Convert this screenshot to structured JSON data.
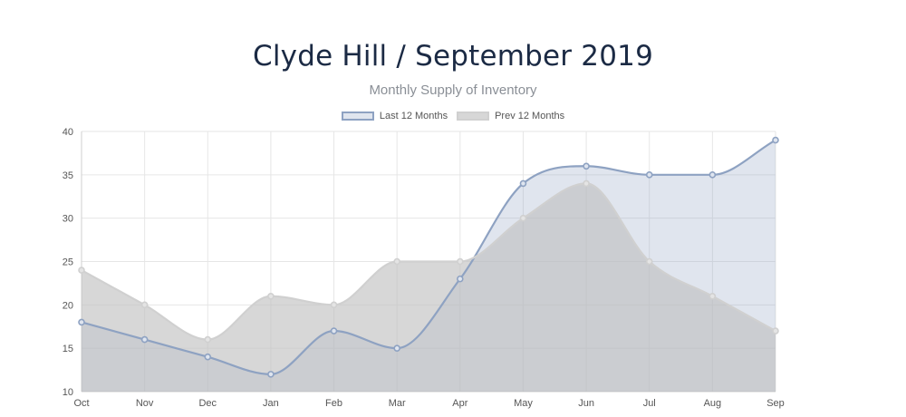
{
  "header": {
    "title": "Clyde Hill / September 2019",
    "subtitle": "Monthly Supply of Inventory"
  },
  "colors": {
    "last_line": "#8ea2c2",
    "last_fill": "rgba(142,162,194,0.28)",
    "prev_line": "#d0d0d0",
    "prev_fill": "rgba(190,190,190,0.62)",
    "grid": "#e6e6e6"
  },
  "chart_data": {
    "type": "area",
    "title": "Clyde Hill / September 2019",
    "subtitle": "Monthly Supply of Inventory",
    "categories": [
      "Oct",
      "Nov",
      "Dec",
      "Jan",
      "Feb",
      "Mar",
      "Apr",
      "May",
      "Jun",
      "Jul",
      "Aug",
      "Sep"
    ],
    "series": [
      {
        "name": "Last 12 Months",
        "values": [
          18,
          16,
          14,
          12,
          17,
          15,
          23,
          34,
          36,
          35,
          35,
          39
        ]
      },
      {
        "name": "Prev 12 Months",
        "values": [
          24,
          20,
          16,
          21,
          20,
          25,
          25,
          30,
          34,
          25,
          21,
          17
        ]
      }
    ],
    "ylim": [
      10,
      40
    ],
    "yticks": [
      10,
      15,
      20,
      25,
      30,
      35,
      40
    ],
    "legend": "top-center",
    "grid": true
  }
}
